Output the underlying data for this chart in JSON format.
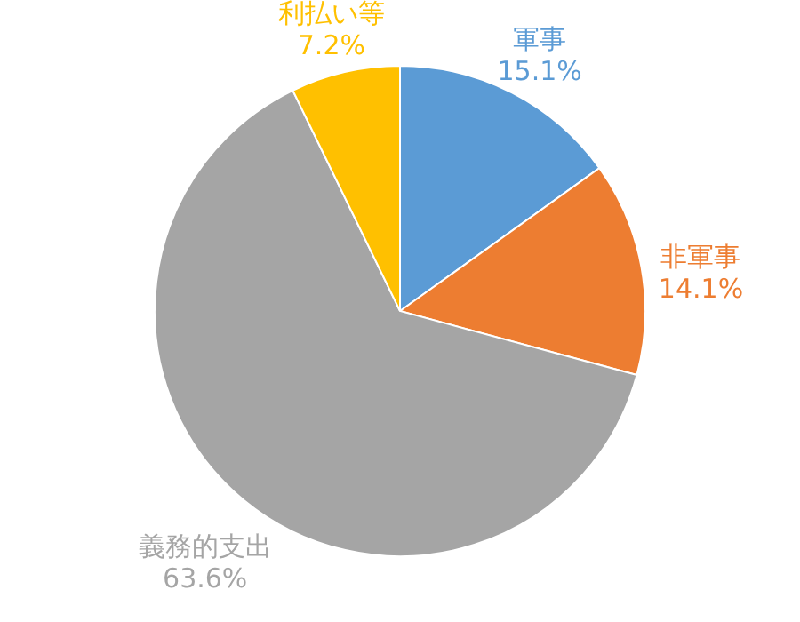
{
  "chart_data": {
    "type": "pie",
    "categories": [
      "軍事",
      "非軍事",
      "義務的支出",
      "利払い等"
    ],
    "values": [
      15.1,
      14.1,
      63.6,
      7.2
    ],
    "colors": [
      "#5b9bd5",
      "#ed7d31",
      "#a5a5a5",
      "#ffc000"
    ],
    "value_labels": [
      "15.1%",
      "14.1%",
      "63.6%",
      "7.2%"
    ],
    "legend": false
  }
}
